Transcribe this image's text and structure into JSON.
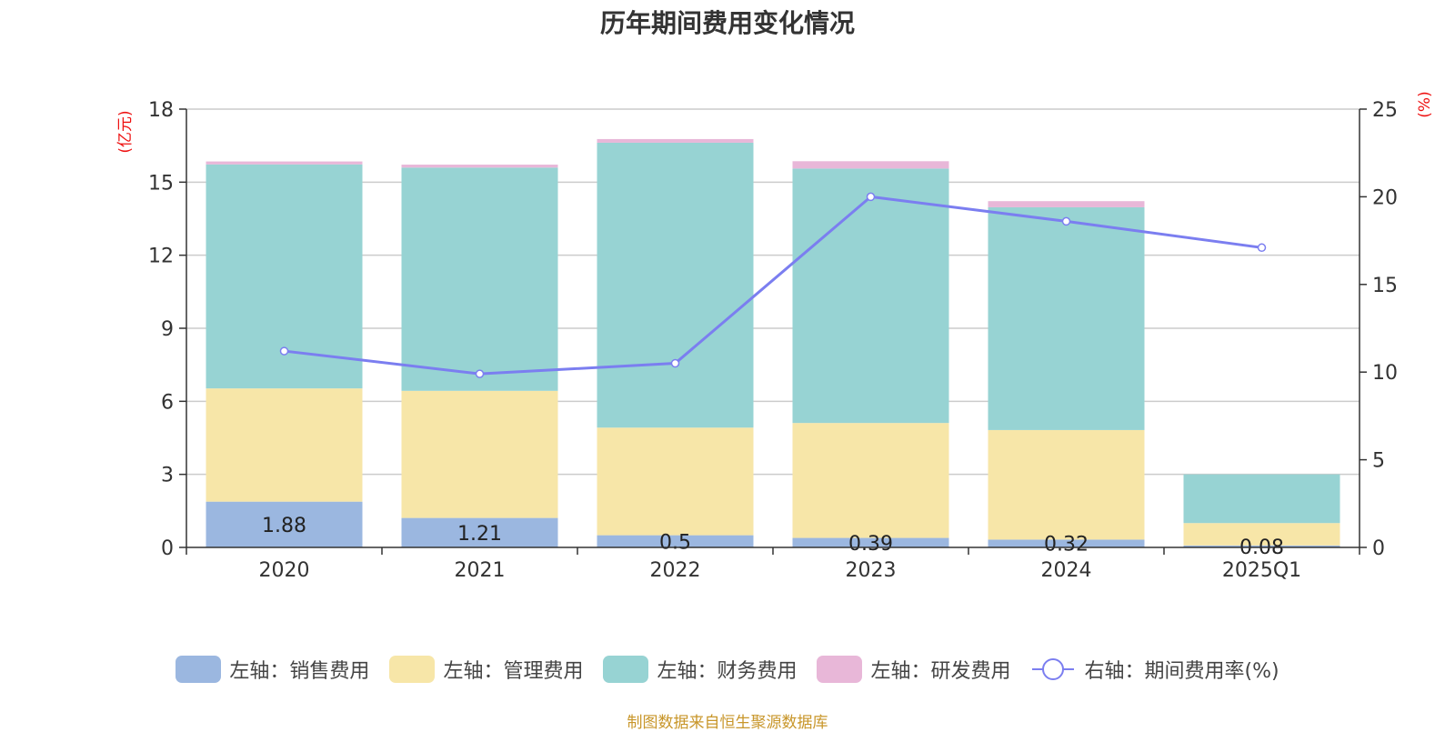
{
  "chart_data": {
    "type": "bar",
    "stacked": true,
    "title": "历年期间费用变化情况",
    "categories": [
      "2020",
      "2021",
      "2022",
      "2023",
      "2024",
      "2025Q1"
    ],
    "left_axis": {
      "label": "(亿元)",
      "min": 0,
      "max": 18,
      "ticks": [
        0,
        3,
        6,
        9,
        12,
        15,
        18
      ],
      "color": "#ee1111"
    },
    "right_axis": {
      "label": "(%)",
      "min": 0,
      "max": 25,
      "ticks": [
        0,
        5,
        10,
        15,
        20,
        25
      ],
      "color": "#ee1111"
    },
    "series": [
      {
        "name": "左轴：销售费用",
        "axis": "left",
        "color": "#9bb7e0",
        "values": [
          1.88,
          1.21,
          0.5,
          0.39,
          0.32,
          0.08
        ],
        "labels": [
          "1.88",
          "1.21",
          "0.5",
          "0.39",
          "0.32",
          "0.08"
        ]
      },
      {
        "name": "左轴：管理费用",
        "axis": "left",
        "color": "#f7e6a8",
        "values": [
          4.65,
          5.22,
          4.42,
          4.72,
          4.5,
          0.92
        ]
      },
      {
        "name": "左轴：财务费用",
        "axis": "left",
        "color": "#97d3d3",
        "values": [
          9.2,
          9.17,
          11.7,
          10.45,
          9.15,
          2.0
        ]
      },
      {
        "name": "左轴：研发费用",
        "axis": "left",
        "color": "#e8b7d8",
        "values": [
          0.12,
          0.12,
          0.15,
          0.3,
          0.25,
          0.0
        ]
      },
      {
        "name": "右轴：期间费用率(%)",
        "axis": "right",
        "type": "line",
        "color": "#7b7ef0",
        "values": [
          11.2,
          9.9,
          10.5,
          20.0,
          18.6,
          17.1
        ]
      }
    ]
  },
  "source": "制图数据来自恒生聚源数据库"
}
